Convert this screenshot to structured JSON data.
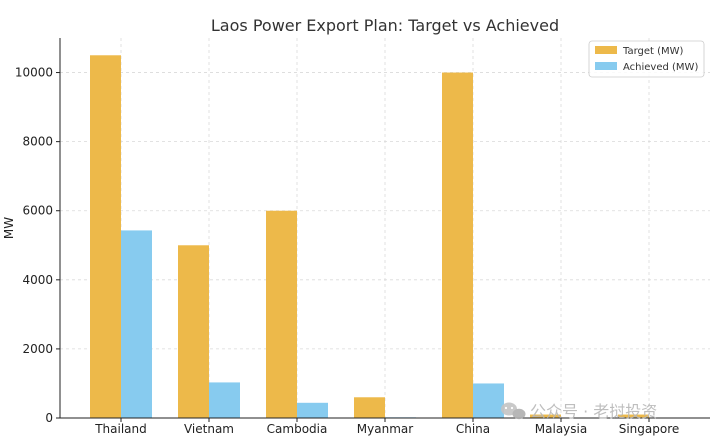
{
  "chart_data": {
    "type": "bar",
    "title": "Laos Power Export Plan: Target vs Achieved",
    "xlabel": "",
    "ylabel": "MW",
    "ylim": [
      0,
      11000
    ],
    "yticks": [
      0,
      2000,
      4000,
      6000,
      8000,
      10000
    ],
    "grid": true,
    "legend_position": "top-right",
    "categories": [
      "Thailand",
      "Vietnam",
      "Cambodia",
      "Myanmar",
      "China",
      "Malaysia",
      "Singapore"
    ],
    "series": [
      {
        "name": "Target (MW)",
        "color": "#EDB94A",
        "values": [
          10500,
          5000,
          6000,
          600,
          10000,
          100,
          100
        ]
      },
      {
        "name": "Achieved (MW)",
        "color": "#87CBEF",
        "values": [
          5430,
          1030,
          440,
          20,
          1000,
          0,
          0
        ]
      }
    ]
  },
  "watermark": {
    "text": "公众号 · 老挝投资",
    "icon": "wechat-icon"
  }
}
